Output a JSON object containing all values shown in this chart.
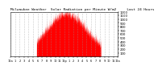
{
  "title": "Milwaukee Weather  Solar Radiation per Minute W/m2     Last 24 Hours",
  "title_fontsize": 3.2,
  "bar_color": "#ff0000",
  "background_color": "#ffffff",
  "ylim": [
    0,
    1200
  ],
  "yticks": [
    100,
    200,
    300,
    400,
    500,
    600,
    700,
    800,
    900,
    1000,
    1100,
    1200
  ],
  "ylabel_fontsize": 2.8,
  "xlabel_fontsize": 2.5,
  "num_points": 1440,
  "peak_value": 1100,
  "peak_hour": 12.5,
  "spread_hours": 4.5,
  "grid_color": "#999999",
  "grid_style": ":",
  "x_tick_labels": [
    "12a",
    "1",
    "2",
    "3",
    "4",
    "5",
    "6",
    "7",
    "8",
    "9",
    "10",
    "11",
    "12p",
    "1",
    "2",
    "3",
    "4",
    "5",
    "6",
    "7",
    "8",
    "9",
    "10",
    "11",
    "12a"
  ]
}
